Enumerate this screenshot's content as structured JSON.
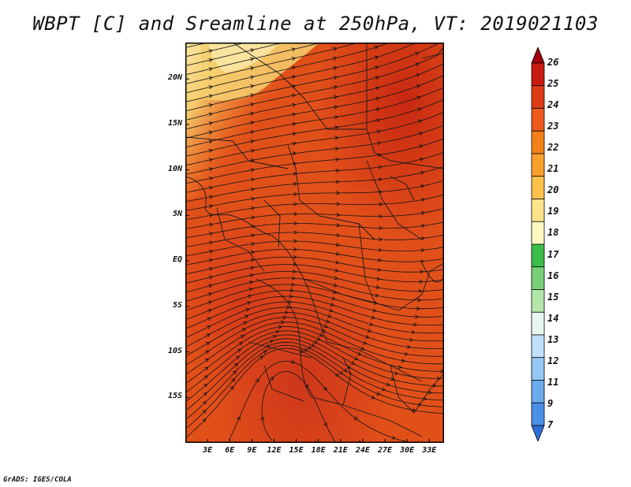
{
  "title": "WBPT [C] and Sreamline at 250hPa, VT: 2019021103",
  "credit": "GrADS: IGES/COLA",
  "map": {
    "lon_range": [
      0,
      35
    ],
    "lat_range": [
      -20,
      24
    ],
    "lat_ticks": [
      {
        "value": 20,
        "label": "20N"
      },
      {
        "value": 15,
        "label": "15N"
      },
      {
        "value": 10,
        "label": "10N"
      },
      {
        "value": 5,
        "label": "5N"
      },
      {
        "value": 0,
        "label": "EQ"
      },
      {
        "value": -5,
        "label": "5S"
      },
      {
        "value": -10,
        "label": "10S"
      },
      {
        "value": -15,
        "label": "15S"
      }
    ],
    "lon_ticks": [
      {
        "value": 3,
        "label": "3E"
      },
      {
        "value": 6,
        "label": "6E"
      },
      {
        "value": 9,
        "label": "9E"
      },
      {
        "value": 12,
        "label": "12E"
      },
      {
        "value": 15,
        "label": "15E"
      },
      {
        "value": 18,
        "label": "18E"
      },
      {
        "value": 21,
        "label": "21E"
      },
      {
        "value": 24,
        "label": "24E"
      },
      {
        "value": 27,
        "label": "27E"
      },
      {
        "value": 30,
        "label": "30E"
      },
      {
        "value": 33,
        "label": "33E"
      }
    ],
    "field_colors": {
      "base": "#e2501a",
      "hot": "#cc2a12",
      "warm_yellow": "#f6cf70",
      "pale_yellow": "#fbe6a4",
      "orange": "#ea6a22",
      "boundary": "#1a1a1a",
      "streamline": "#141414"
    }
  },
  "colorbar": {
    "levels": [
      "26",
      "25",
      "24",
      "23",
      "22",
      "21",
      "20",
      "19",
      "18",
      "17",
      "16",
      "15",
      "14",
      "13",
      "12",
      "11",
      "9",
      "7"
    ],
    "colors": [
      "#a0000d",
      "#c81c12",
      "#dd3a16",
      "#ea5a1a",
      "#f48019",
      "#f9a02c",
      "#fcc04c",
      "#fde48a",
      "#fdf8c0",
      "#3cbc48",
      "#78d076",
      "#b4e6ac",
      "#e8f8f0",
      "#c0e0fa",
      "#94c8f4",
      "#6aacee",
      "#4a90e6",
      "#2c6ed6"
    ]
  }
}
